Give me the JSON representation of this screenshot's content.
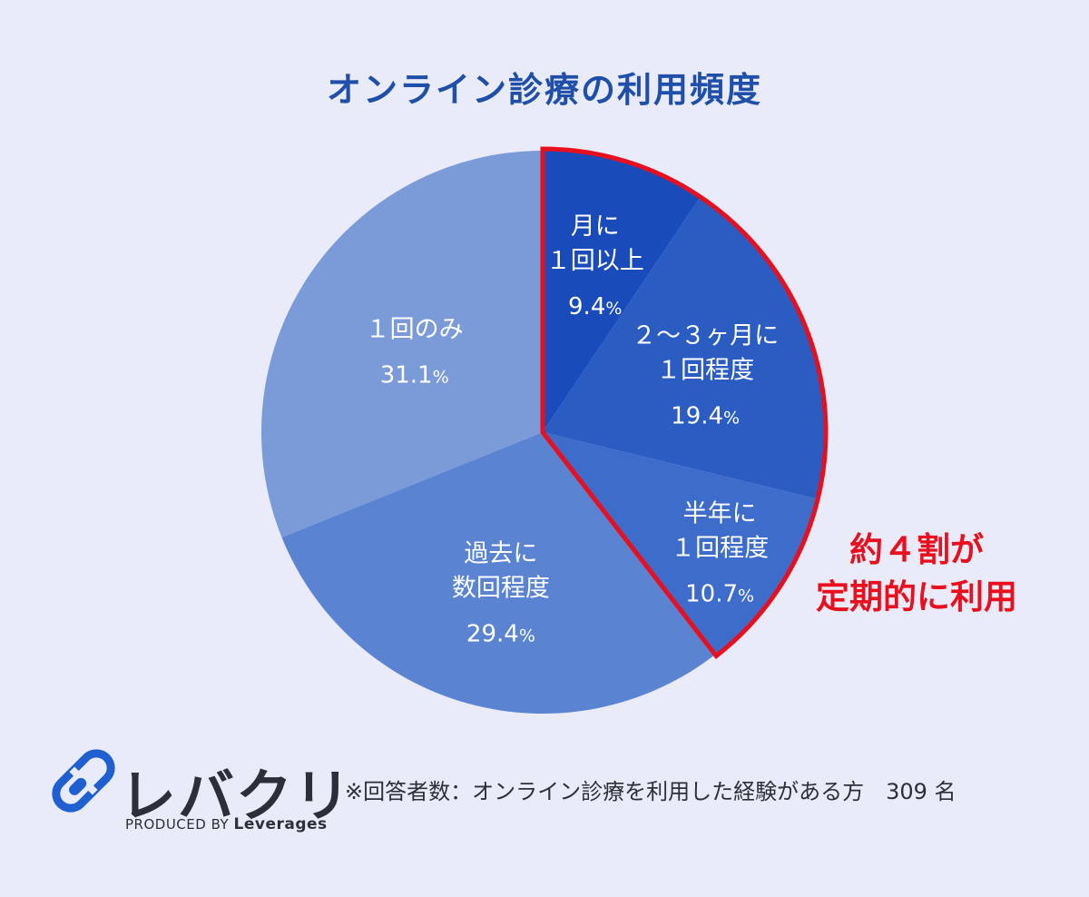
{
  "chart_data": {
    "type": "pie",
    "title": "オンライン診療の利用頻度",
    "slices": [
      {
        "label_lines": [
          "月に",
          "１回以上"
        ],
        "value": 9.4,
        "color": "#1a4bbb"
      },
      {
        "label_lines": [
          "２～３ヶ月に",
          "１回程度"
        ],
        "value": 19.4,
        "color": "#2a5cc2"
      },
      {
        "label_lines": [
          "半年に",
          "１回程度"
        ],
        "value": 10.7,
        "color": "#3d6cca"
      },
      {
        "label_lines": [
          "過去に",
          "数回程度"
        ],
        "value": 29.4,
        "color": "#5a84d2"
      },
      {
        "label_lines": [
          "１回のみ"
        ],
        "value": 31.1,
        "color": "#7a9ad8"
      }
    ],
    "value_suffix": "%",
    "highlight": {
      "slices": [
        0,
        1,
        2
      ],
      "border_color": "#e8101e",
      "label_lines": [
        "約４割が",
        "定期的に利用"
      ]
    }
  },
  "footer": {
    "logo_text": "レバクリ",
    "produced_by": "PRODUCED BY",
    "company": "Leverages",
    "note": "※回答者数：オンライン診療を利用した経験がある方　309 名"
  }
}
